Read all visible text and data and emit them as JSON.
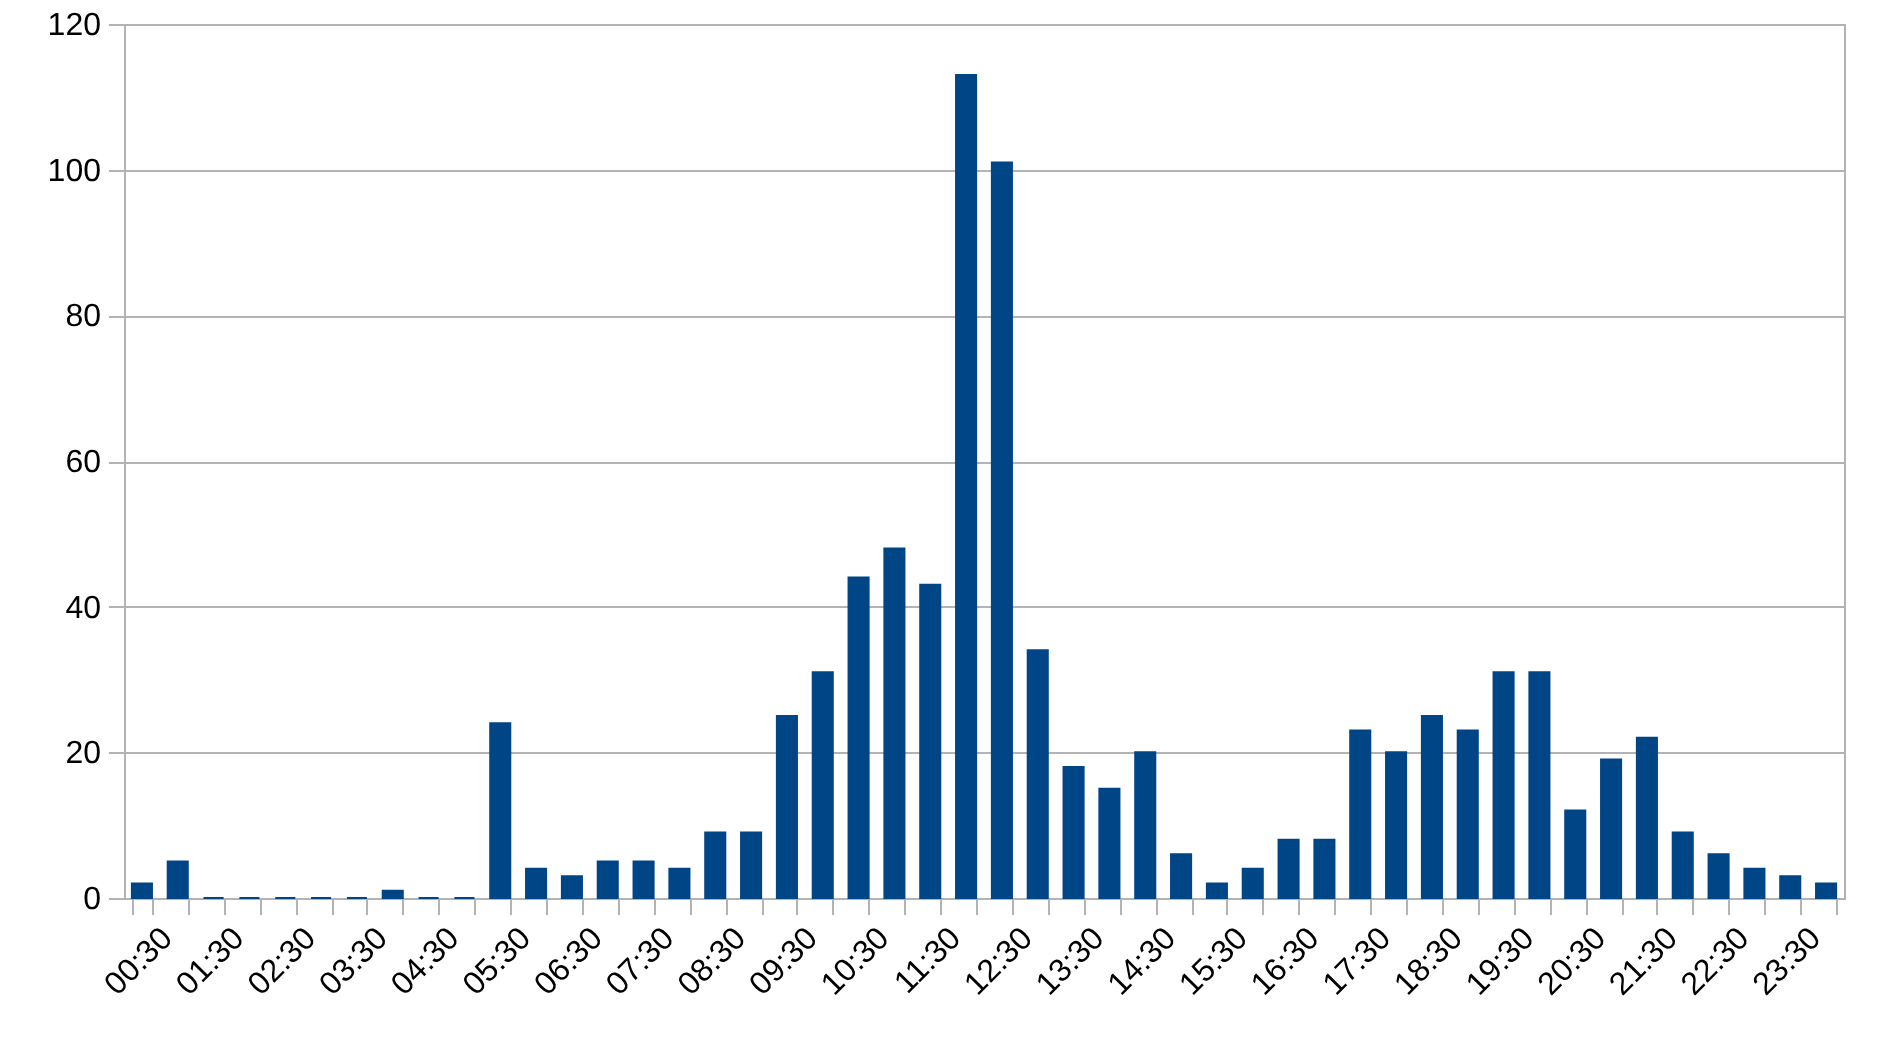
{
  "chart_data": {
    "type": "bar",
    "categories": [
      "00:30",
      null,
      "01:30",
      null,
      "02:30",
      null,
      "03:30",
      null,
      "04:30",
      null,
      "05:30",
      null,
      "06:30",
      null,
      "07:30",
      null,
      "08:30",
      null,
      "09:30",
      null,
      "10:30",
      null,
      "11:30",
      null,
      "12:30",
      null,
      "13:30",
      null,
      "14:30",
      null,
      "15:30",
      null,
      "16:30",
      null,
      "17:30",
      null,
      "18:30",
      null,
      "19:30",
      null,
      "20:30",
      null,
      "21:30",
      null,
      "22:30",
      null,
      "23:30",
      null
    ],
    "values": [
      2,
      5,
      0,
      0,
      0,
      0,
      0,
      1,
      0,
      0,
      24,
      4,
      3,
      5,
      5,
      4,
      9,
      9,
      25,
      31,
      44,
      48,
      43,
      113,
      101,
      34,
      18,
      15,
      20,
      6,
      2,
      4,
      8,
      8,
      23,
      20,
      25,
      23,
      31,
      31,
      12,
      19,
      22,
      9,
      6,
      4,
      3,
      2
    ],
    "color": "#004586",
    "ylim": [
      0,
      120
    ],
    "yticks": [
      0,
      20,
      40,
      60,
      80,
      100,
      120
    ],
    "grid": "y"
  }
}
